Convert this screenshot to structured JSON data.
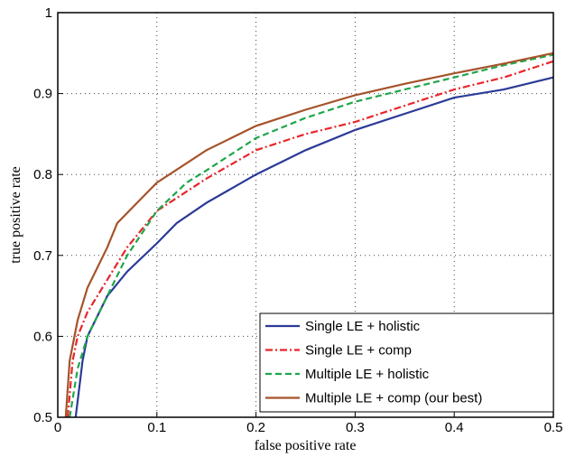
{
  "chart_data": {
    "type": "line",
    "xlabel": "false positive rate",
    "ylabel": "true positive rate",
    "xlim": [
      0,
      0.5
    ],
    "ylim": [
      0.5,
      1
    ],
    "xticks": [
      0,
      0.1,
      0.2,
      0.3,
      0.4,
      0.5
    ],
    "yticks": [
      0.5,
      0.6,
      0.7,
      0.8,
      0.9,
      1
    ],
    "grid": true,
    "legend": "lower right",
    "series": [
      {
        "name": "Single LE + holistic",
        "color": "#2b3a97",
        "linestyle": "solid",
        "x": [
          0.018,
          0.025,
          0.03,
          0.05,
          0.07,
          0.1,
          0.12,
          0.15,
          0.2,
          0.25,
          0.3,
          0.35,
          0.4,
          0.45,
          0.5
        ],
        "values": [
          0.5,
          0.57,
          0.6,
          0.65,
          0.68,
          0.715,
          0.74,
          0.765,
          0.8,
          0.83,
          0.855,
          0.875,
          0.895,
          0.905,
          0.92
        ]
      },
      {
        "name": "Single LE + comp",
        "color": "#e8262b",
        "linestyle": "dashdot",
        "x": [
          0.01,
          0.015,
          0.02,
          0.03,
          0.05,
          0.07,
          0.1,
          0.15,
          0.2,
          0.25,
          0.3,
          0.35,
          0.4,
          0.45,
          0.5
        ],
        "values": [
          0.5,
          0.57,
          0.6,
          0.63,
          0.67,
          0.71,
          0.755,
          0.795,
          0.83,
          0.85,
          0.865,
          0.885,
          0.905,
          0.92,
          0.94
        ]
      },
      {
        "name": "Multiple LE + holistic",
        "color": "#1fa64a",
        "linestyle": "dashed",
        "x": [
          0.012,
          0.02,
          0.03,
          0.05,
          0.07,
          0.1,
          0.13,
          0.15,
          0.2,
          0.25,
          0.3,
          0.35,
          0.4,
          0.45,
          0.5
        ],
        "values": [
          0.5,
          0.56,
          0.6,
          0.65,
          0.7,
          0.755,
          0.79,
          0.805,
          0.845,
          0.87,
          0.89,
          0.905,
          0.92,
          0.935,
          0.948
        ]
      },
      {
        "name": "Multiple LE + comp (our best)",
        "color": "#a5532a",
        "linestyle": "solid",
        "x": [
          0.008,
          0.012,
          0.02,
          0.03,
          0.05,
          0.06,
          0.08,
          0.1,
          0.15,
          0.2,
          0.25,
          0.3,
          0.35,
          0.4,
          0.45,
          0.5
        ],
        "values": [
          0.5,
          0.57,
          0.62,
          0.66,
          0.71,
          0.74,
          0.765,
          0.79,
          0.83,
          0.86,
          0.88,
          0.898,
          0.912,
          0.925,
          0.937,
          0.95
        ]
      }
    ]
  }
}
